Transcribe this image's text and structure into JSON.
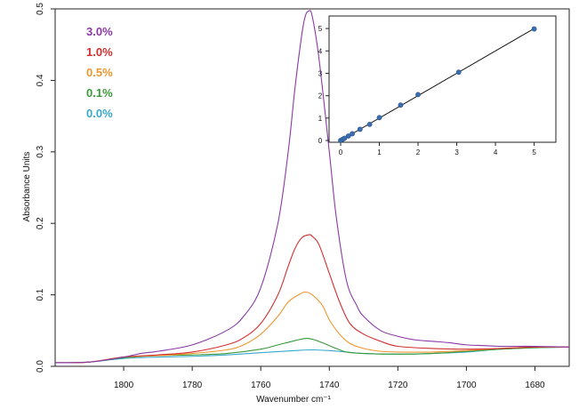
{
  "chart_data": [
    {
      "type": "line",
      "xlabel": "Wavenumber cm⁻¹",
      "ylabel": "Absorbance Units",
      "xlim": [
        1820,
        1670
      ],
      "ylim": [
        0,
        0.5
      ],
      "x_reversed": true,
      "x_ticks": [
        1800,
        1780,
        1760,
        1740,
        1720,
        1700,
        1680
      ],
      "y_ticks": [
        "0.0",
        "0.1",
        "0.2",
        "0.3",
        "0.4",
        "0.5"
      ],
      "grid": false,
      "legend_position": "top-left",
      "series": [
        {
          "name": "3.0%",
          "color": "#8a3aa6",
          "x": [
            1820,
            1810,
            1800,
            1795,
            1790,
            1780,
            1770,
            1765,
            1760,
            1755,
            1752,
            1750,
            1748,
            1747,
            1746,
            1745,
            1743,
            1740,
            1738,
            1735,
            1732,
            1730,
            1725,
            1720,
            1715,
            1710,
            1705,
            1700,
            1695,
            1690,
            1680,
            1670
          ],
          "y": [
            0.005,
            0.006,
            0.013,
            0.018,
            0.021,
            0.03,
            0.05,
            0.07,
            0.11,
            0.2,
            0.3,
            0.39,
            0.465,
            0.49,
            0.497,
            0.49,
            0.43,
            0.3,
            0.21,
            0.12,
            0.085,
            0.07,
            0.05,
            0.042,
            0.037,
            0.035,
            0.033,
            0.03,
            0.029,
            0.028,
            0.028,
            0.027
          ]
        },
        {
          "name": "1.0%",
          "color": "#d22f2f",
          "x": [
            1820,
            1810,
            1800,
            1790,
            1780,
            1770,
            1765,
            1760,
            1755,
            1752,
            1750,
            1748,
            1746,
            1745,
            1743,
            1740,
            1737,
            1734,
            1730,
            1725,
            1720,
            1710,
            1700,
            1690,
            1680,
            1670
          ],
          "y": [
            0.005,
            0.006,
            0.013,
            0.016,
            0.02,
            0.03,
            0.04,
            0.06,
            0.1,
            0.14,
            0.165,
            0.18,
            0.184,
            0.182,
            0.17,
            0.13,
            0.09,
            0.06,
            0.045,
            0.035,
            0.028,
            0.025,
            0.024,
            0.025,
            0.027,
            0.027
          ]
        },
        {
          "name": "0.5%",
          "color": "#f0962e",
          "x": [
            1820,
            1810,
            1800,
            1790,
            1780,
            1770,
            1765,
            1760,
            1755,
            1752,
            1749,
            1747,
            1745,
            1742,
            1740,
            1737,
            1734,
            1730,
            1725,
            1720,
            1710,
            1700,
            1690,
            1680,
            1670
          ],
          "y": [
            0.005,
            0.006,
            0.013,
            0.015,
            0.018,
            0.023,
            0.03,
            0.045,
            0.07,
            0.09,
            0.1,
            0.104,
            0.1,
            0.085,
            0.065,
            0.045,
            0.032,
            0.025,
            0.021,
            0.02,
            0.02,
            0.022,
            0.025,
            0.027,
            0.027
          ]
        },
        {
          "name": "0.1%",
          "color": "#3a9a3a",
          "x": [
            1820,
            1810,
            1800,
            1790,
            1780,
            1770,
            1760,
            1755,
            1750,
            1747,
            1745,
            1742,
            1738,
            1735,
            1730,
            1720,
            1710,
            1700,
            1690,
            1680,
            1670
          ],
          "y": [
            0.005,
            0.006,
            0.012,
            0.015,
            0.016,
            0.018,
            0.024,
            0.03,
            0.036,
            0.039,
            0.038,
            0.033,
            0.025,
            0.02,
            0.018,
            0.017,
            0.018,
            0.021,
            0.024,
            0.026,
            0.027
          ]
        },
        {
          "name": "0.0%",
          "color": "#38a8cc",
          "x": [
            1820,
            1810,
            1800,
            1790,
            1780,
            1770,
            1760,
            1750,
            1745,
            1740,
            1735,
            1730,
            1720,
            1710,
            1700,
            1690,
            1680,
            1670
          ],
          "y": [
            0.005,
            0.006,
            0.011,
            0.013,
            0.014,
            0.016,
            0.019,
            0.022,
            0.023,
            0.022,
            0.02,
            0.018,
            0.017,
            0.018,
            0.02,
            0.024,
            0.026,
            0.027
          ]
        }
      ]
    },
    {
      "type": "scatter",
      "placement": "inset-top-right",
      "xlim": [
        0,
        5.4
      ],
      "ylim": [
        0,
        5.4
      ],
      "x_ticks": [
        "0",
        "1",
        "2",
        "3",
        "4",
        "5"
      ],
      "y_ticks": [
        "0",
        "1",
        "2",
        "3",
        "4",
        "5"
      ],
      "grid": false,
      "points": {
        "color": "#3b6fb0",
        "x": [
          0,
          0.05,
          0.1,
          0.2,
          0.3,
          0.5,
          0.75,
          1.0,
          1.55,
          2.0,
          3.05,
          5.0
        ],
        "y": [
          0,
          0.05,
          0.1,
          0.2,
          0.3,
          0.5,
          0.72,
          1.02,
          1.58,
          2.05,
          3.05,
          4.98
        ]
      },
      "fit_line": {
        "color": "#111111",
        "x": [
          0,
          5
        ],
        "y": [
          0,
          5
        ]
      }
    }
  ]
}
